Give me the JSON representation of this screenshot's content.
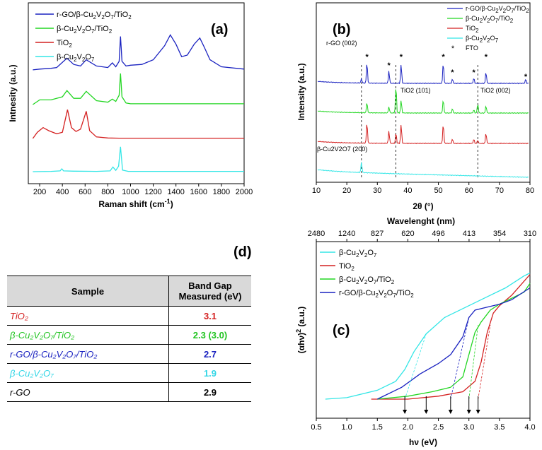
{
  "panels": {
    "a": "(a)",
    "b": "(b)",
    "c": "(c)",
    "d": "(d)"
  },
  "colors": {
    "rgo": "#1a22c0",
    "bcvo_tio2": "#22d622",
    "tio2": "#d42020",
    "bcvo": "#33e6e6",
    "fto": "#000000"
  },
  "chart_data": [
    {
      "type": "line",
      "panel": "(a)",
      "xlabel": "Raman shift (cm",
      "xlabel_sup": "-1",
      "xlabel_end": ")",
      "ylabel": "Intnesity (a.u.)",
      "xlim": [
        100,
        2000
      ],
      "xticks": [
        "200",
        "400",
        "600",
        "800",
        "1000",
        "1200",
        "1400",
        "1600",
        "1800",
        "2000"
      ],
      "legend": [
        "r-GO/β-Cu2V2O7/TiO2",
        "β-Cu2V2O7/TiO2",
        "TiO2",
        "β-Cu2V2O7"
      ],
      "series": [
        {
          "name": "r-GO/β-Cu2V2O7/TiO2",
          "color": "#1a22c0",
          "offset": 3,
          "x": [
            140,
            200,
            300,
            350,
            440,
            500,
            560,
            610,
            700,
            800,
            840,
            870,
            900,
            912,
            925,
            960,
            1000,
            1100,
            1200,
            1300,
            1350,
            1400,
            1450,
            1500,
            1560,
            1610,
            1650,
            1700,
            1800,
            2000
          ],
          "y": [
            0.05,
            0.1,
            0.15,
            0.2,
            0.8,
            0.4,
            0.3,
            0.7,
            0.3,
            0.2,
            0.5,
            0.25,
            0.6,
            2.2,
            0.6,
            0.3,
            0.35,
            0.4,
            0.7,
            1.6,
            2.3,
            1.7,
            0.9,
            1.0,
            1.7,
            2.1,
            1.5,
            0.7,
            0.25,
            0.1
          ]
        },
        {
          "name": "β-Cu2V2O7/TiO2",
          "color": "#22d622",
          "offset": 2,
          "x": [
            140,
            200,
            300,
            400,
            440,
            500,
            560,
            610,
            700,
            800,
            840,
            870,
            900,
            912,
            925,
            960,
            1000,
            1100,
            1400,
            1700,
            2000
          ],
          "y": [
            0.0,
            0.3,
            0.3,
            0.5,
            0.9,
            0.4,
            0.4,
            0.85,
            0.25,
            0.15,
            0.35,
            0.2,
            0.6,
            2.0,
            0.5,
            0.1,
            0.05,
            0.05,
            0.05,
            0.05,
            0.05
          ]
        },
        {
          "name": "TiO2",
          "color": "#d42020",
          "offset": 1,
          "x": [
            140,
            180,
            230,
            280,
            350,
            400,
            445,
            480,
            520,
            560,
            610,
            640,
            700,
            800,
            900,
            1000,
            1200,
            1500,
            2000
          ],
          "y": [
            0.0,
            0.4,
            0.7,
            0.5,
            0.3,
            0.4,
            1.85,
            0.7,
            0.45,
            0.6,
            1.75,
            0.5,
            0.1,
            0.03,
            0.02,
            0.02,
            0.02,
            0.02,
            0.02
          ]
        },
        {
          "name": "β-Cu2V2O7",
          "color": "#33e6e6",
          "offset": 0,
          "x": [
            140,
            300,
            380,
            395,
            410,
            500,
            700,
            820,
            845,
            870,
            895,
            912,
            930,
            980,
            1200,
            1600,
            2000
          ],
          "y": [
            0.0,
            0.02,
            0.05,
            0.18,
            0.05,
            0.03,
            0.02,
            0.05,
            0.3,
            0.08,
            0.35,
            1.6,
            0.1,
            0.02,
            0.02,
            0.02,
            0.02
          ]
        }
      ]
    },
    {
      "type": "line",
      "panel": "(b)",
      "xlabel": "2θ (°)",
      "ylabel": "Intensity (a.u.)",
      "xlim": [
        10,
        80
      ],
      "xticks": [
        "10",
        "20",
        "30",
        "40",
        "50",
        "60",
        "70",
        "80"
      ],
      "legend": [
        "r-GO/β-Cu2V2O7/TiO2",
        "β-Cu2V2O7/TiO2",
        "TiO2",
        "β-Cu2V2O7",
        "FTO"
      ],
      "annotations": [
        "r-GO (002)",
        "TiO2 (101)",
        "TiO2 (002)",
        "β-Cu2V2O7 (200)"
      ],
      "dashed_x": [
        24.8,
        36.1,
        62.9
      ],
      "series": [
        {
          "name": "r-GO/β-Cu2V2O7/TiO2",
          "color": "#1a22c0",
          "offset": 3,
          "peaks": [
            [
              24.8,
              0.2
            ],
            [
              26.6,
              1.0
            ],
            [
              33.8,
              0.6
            ],
            [
              37.8,
              0.9
            ],
            [
              51.6,
              1.0
            ],
            [
              54.6,
              0.2
            ],
            [
              61.6,
              0.25
            ],
            [
              65.6,
              0.55
            ],
            [
              78.6,
              0.2
            ]
          ]
        },
        {
          "name": "β-Cu2V2O7/TiO2",
          "color": "#22d622",
          "offset": 2,
          "peaks": [
            [
              26.6,
              0.5
            ],
            [
              33.8,
              0.3
            ],
            [
              36.1,
              1.3
            ],
            [
              37.8,
              0.6
            ],
            [
              51.6,
              0.65
            ],
            [
              54.6,
              0.2
            ],
            [
              61.6,
              0.15
            ],
            [
              62.9,
              0.45
            ],
            [
              65.6,
              0.35
            ]
          ]
        },
        {
          "name": "TiO2",
          "color": "#d42020",
          "offset": 1,
          "peaks": [
            [
              26.6,
              1.0
            ],
            [
              33.8,
              0.6
            ],
            [
              36.1,
              0.5
            ],
            [
              37.8,
              0.9
            ],
            [
              51.6,
              0.95
            ],
            [
              54.6,
              0.2
            ],
            [
              61.6,
              0.2
            ],
            [
              62.9,
              0.15
            ],
            [
              65.6,
              0.5
            ]
          ]
        },
        {
          "name": "β-Cu2V2O7",
          "color": "#33e6e6",
          "offset": 0,
          "peaks": [
            [
              24.8,
              0.5
            ]
          ]
        }
      ],
      "fto_marks": [
        26.6,
        33.8,
        37.8,
        51.6,
        54.6,
        61.6,
        65.6,
        78.6
      ]
    },
    {
      "type": "line",
      "panel": "(c)",
      "xlabel": "hν (eV)",
      "ylabel": "(αhν)² (a.u.)",
      "top_label": "Wavelenght (nm)",
      "xlim": [
        0.5,
        4.0
      ],
      "xticks": [
        "0.5",
        "1.0",
        "1.5",
        "2.0",
        "2.5",
        "3.0",
        "3.5",
        "4.0"
      ],
      "top_ticks": [
        "2480",
        "1240",
        "827",
        "620",
        "496",
        "413",
        "354",
        "310"
      ],
      "legend": [
        "β-Cu2V2O7",
        "TiO2",
        "β-Cu2V2O7/TiO2",
        "r-GO/β-Cu2V2O7/TiO2"
      ],
      "band_gap_arrows": [
        1.95,
        2.3,
        2.7,
        3.0,
        3.15
      ],
      "series": [
        {
          "name": "β-Cu2V2O7",
          "color": "#33e6e6",
          "x": [
            0.65,
            1.0,
            1.5,
            1.8,
            1.95,
            2.1,
            2.3,
            2.6,
            3.0,
            3.3,
            3.6,
            3.9,
            4.0
          ],
          "y": [
            0.0,
            0.01,
            0.06,
            0.12,
            0.2,
            0.32,
            0.44,
            0.55,
            0.63,
            0.69,
            0.75,
            0.83,
            0.85
          ]
        },
        {
          "name": "TiO2",
          "color": "#d42020",
          "x": [
            1.4,
            2.0,
            2.5,
            2.9,
            3.1,
            3.2,
            3.3,
            3.4,
            3.5,
            3.7,
            4.0
          ],
          "y": [
            0.0,
            0.0,
            0.02,
            0.05,
            0.12,
            0.25,
            0.45,
            0.58,
            0.63,
            0.7,
            0.84
          ]
        },
        {
          "name": "β-Cu2V2O7/TiO2",
          "color": "#22d622",
          "x": [
            1.5,
            2.0,
            2.4,
            2.7,
            2.9,
            3.0,
            3.1,
            3.2,
            3.35,
            3.5,
            3.7,
            3.9,
            4.0
          ],
          "y": [
            0.0,
            0.02,
            0.05,
            0.08,
            0.15,
            0.3,
            0.45,
            0.52,
            0.6,
            0.64,
            0.68,
            0.72,
            0.78
          ]
        },
        {
          "name": "r-GO/β-Cu2V2O7/TiO2",
          "color": "#1a22c0",
          "x": [
            1.5,
            1.9,
            2.2,
            2.5,
            2.7,
            2.9,
            3.0,
            3.1,
            3.3,
            3.5,
            3.7,
            4.0
          ],
          "y": [
            0.0,
            0.08,
            0.17,
            0.24,
            0.3,
            0.42,
            0.55,
            0.6,
            0.62,
            0.64,
            0.67,
            0.75
          ]
        }
      ]
    }
  ],
  "table": {
    "headers": [
      "Sample",
      "Band Gap\nMeasured  (eV)"
    ],
    "rows": [
      {
        "sample": "TiO₂",
        "value": "3.1",
        "color": "#d42020"
      },
      {
        "sample": "β-Cu₂V₂O₇/TiO₂",
        "value": "2.3 (3.0)",
        "color": "#22c422"
      },
      {
        "sample": "r-GO/β-Cu₂V₂O₇/TiO₂",
        "value": "2.7",
        "color": "#1a22c0"
      },
      {
        "sample": "β-Cu₂V₂O₇",
        "value": "1.9",
        "color": "#33d6e6"
      },
      {
        "sample": "r-GO",
        "value": "2.9",
        "color": "#000000"
      }
    ]
  }
}
